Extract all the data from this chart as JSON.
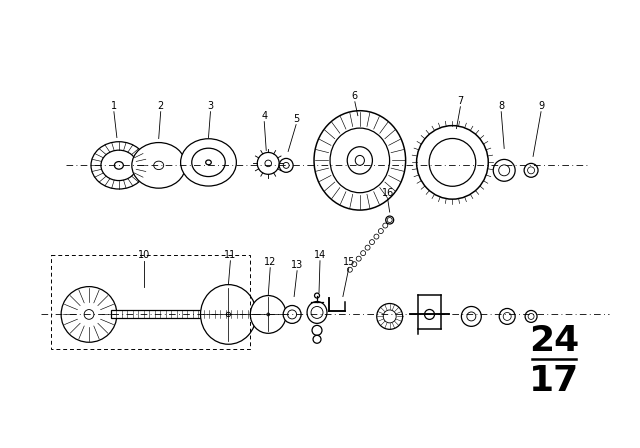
{
  "bg_color": "#ffffff",
  "line_color": "#000000",
  "page_number_top": "24",
  "page_number_bottom": "17",
  "figsize": [
    6.4,
    4.48
  ],
  "dpi": 100
}
